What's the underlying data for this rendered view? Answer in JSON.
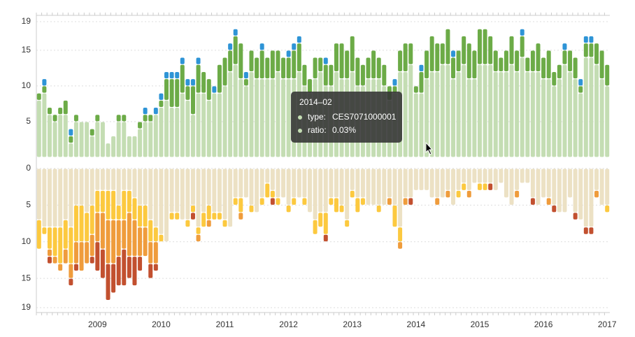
{
  "chart_data": {
    "type": "unit-stack",
    "grid": true,
    "categories": [
      null,
      null,
      null,
      null,
      null,
      null,
      null,
      null,
      null,
      null,
      null,
      "2009",
      null,
      null,
      null,
      null,
      null,
      null,
      null,
      null,
      null,
      null,
      null,
      "2010",
      null,
      null,
      null,
      null,
      null,
      null,
      null,
      null,
      null,
      null,
      null,
      "2011",
      null,
      null,
      null,
      null,
      null,
      null,
      null,
      null,
      null,
      null,
      null,
      "2012",
      null,
      null,
      null,
      null,
      null,
      null,
      null,
      null,
      null,
      null,
      null,
      "2013",
      null,
      null,
      null,
      null,
      null,
      null,
      null,
      null,
      null,
      null,
      null,
      "2014",
      null,
      null,
      null,
      null,
      null,
      null,
      null,
      null,
      null,
      null,
      null,
      "2015",
      null,
      null,
      null,
      null,
      null,
      null,
      null,
      null,
      null,
      null,
      null,
      "2016",
      null,
      null,
      null,
      null,
      null,
      null,
      null,
      null,
      null,
      null,
      null,
      "2017"
    ],
    "panels": [
      {
        "direction": "up",
        "ylim": [
          0,
          19
        ],
        "yticks": [
          5,
          10,
          15,
          19
        ],
        "series": [
          {
            "color": "#c4ddb3",
            "values": [
              8,
              9,
              6,
              5,
              6,
              6,
              2,
              5,
              5,
              5,
              3,
              5,
              5,
              2,
              3,
              5,
              5,
              3,
              3,
              4,
              5,
              5,
              6,
              7,
              8,
              7,
              7,
              9,
              8,
              6,
              9,
              9,
              8,
              9,
              9,
              10,
              12,
              13,
              11,
              10,
              12,
              11,
              11,
              11,
              11,
              12,
              11,
              11,
              11,
              12,
              10,
              9,
              11,
              12,
              10,
              10,
              12,
              11,
              11,
              12,
              10,
              10,
              11,
              11,
              11,
              10,
              8,
              9,
              12,
              12,
              13,
              9,
              9,
              11,
              12,
              12,
              13,
              13,
              11,
              12,
              13,
              11,
              11,
              13,
              13,
              13,
              12,
              12,
              12,
              13,
              12,
              14,
              12,
              12,
              12,
              11,
              11,
              10,
              11,
              13,
              12,
              11,
              9,
              14,
              14,
              13,
              11,
              10
            ]
          },
          {
            "color": "#6cab47",
            "values": [
              1,
              1,
              1,
              1,
              1,
              2,
              1,
              1,
              0,
              0,
              1,
              1,
              0,
              0,
              0,
              1,
              1,
              0,
              0,
              1,
              1,
              1,
              0,
              1,
              3,
              4,
              4,
              4,
              2,
              4,
              4,
              3,
              3,
              0,
              4,
              4,
              3,
              4,
              5,
              1,
              3,
              3,
              4,
              3,
              4,
              3,
              3,
              3,
              4,
              4,
              3,
              2,
              3,
              2,
              3,
              3,
              4,
              5,
              4,
              5,
              4,
              3,
              3,
              4,
              3,
              3,
              2,
              1,
              3,
              4,
              3,
              1,
              3,
              4,
              5,
              4,
              3,
              5,
              3,
              3,
              4,
              5,
              4,
              5,
              5,
              4,
              3,
              2,
              3,
              4,
              3,
              3,
              2,
              3,
              4,
              3,
              4,
              2,
              2,
              2,
              3,
              3,
              1,
              2,
              2,
              3,
              4,
              3
            ]
          },
          {
            "color": "#2e94d6",
            "values": [
              0,
              1,
              0,
              0,
              0,
              0,
              1,
              0,
              0,
              0,
              0,
              0,
              0,
              0,
              0,
              0,
              0,
              0,
              0,
              0,
              1,
              0,
              1,
              1,
              1,
              1,
              1,
              1,
              1,
              1,
              1,
              0,
              0,
              1,
              0,
              0,
              1,
              1,
              0,
              1,
              0,
              0,
              1,
              0,
              0,
              0,
              0,
              1,
              1,
              1,
              0,
              0,
              0,
              0,
              1,
              0,
              0,
              0,
              0,
              0,
              0,
              0,
              0,
              0,
              0,
              0,
              0,
              1,
              0,
              0,
              0,
              0,
              1,
              0,
              0,
              0,
              0,
              0,
              1,
              0,
              0,
              0,
              0,
              0,
              0,
              0,
              0,
              0,
              0,
              0,
              0,
              1,
              0,
              0,
              0,
              0,
              0,
              0,
              0,
              1,
              0,
              0,
              1,
              1,
              1,
              0,
              0,
              0
            ]
          }
        ]
      },
      {
        "direction": "down",
        "ylim": [
          0,
          19
        ],
        "yticks": [
          0,
          5,
          10,
          15,
          19
        ],
        "series": [
          {
            "color": "#ece1c4",
            "values": [
              7,
              8,
              8,
              8,
              8,
              7,
              8,
              5,
              5,
              6,
              5,
              3,
              3,
              3,
              3,
              5,
              3,
              3,
              4,
              5,
              5,
              7,
              8,
              9,
              10,
              6,
              6,
              7,
              7,
              5,
              8,
              6,
              5,
              6,
              6,
              7,
              8,
              4,
              4,
              4,
              5,
              6,
              4,
              2,
              3,
              4,
              4,
              5,
              4,
              4,
              4,
              6,
              7,
              6,
              6,
              4,
              4,
              5,
              7,
              3,
              4,
              4,
              5,
              5,
              5,
              5,
              4,
              5,
              8,
              4,
              4,
              3,
              3,
              3,
              4,
              4,
              4,
              3,
              5,
              3,
              2,
              3,
              2,
              2,
              2,
              2,
              3,
              2,
              4,
              5,
              3,
              2,
              2,
              4,
              5,
              4,
              4,
              5,
              6,
              6,
              4,
              6,
              7,
              8,
              8,
              3,
              5,
              5
            ]
          },
          {
            "color": "#fcc93f",
            "values": [
              4,
              1,
              3,
              4,
              5,
              4,
              5,
              5,
              5,
              4,
              4,
              3,
              3,
              4,
              4,
              2,
              4,
              3,
              3,
              3,
              3,
              3,
              2,
              1,
              0,
              1,
              1,
              0,
              1,
              1,
              1,
              2,
              2,
              1,
              1,
              1,
              0,
              1,
              2,
              0,
              1,
              0,
              1,
              2,
              1,
              1,
              0,
              1,
              1,
              0,
              1,
              0,
              2,
              2,
              3,
              1,
              2,
              1,
              1,
              1,
              2,
              1,
              0,
              0,
              1,
              0,
              0,
              3,
              2,
              0,
              0,
              0,
              0,
              0,
              0,
              0,
              0,
              0,
              0,
              1,
              1,
              0,
              0,
              1,
              1,
              0,
              0,
              0,
              0,
              0,
              0,
              0,
              0,
              0,
              0,
              0,
              0,
              0,
              0,
              0,
              0,
              0,
              0,
              0,
              0,
              0,
              0,
              1
            ]
          },
          {
            "color": "#ef9c3c",
            "values": [
              0,
              0,
              1,
              1,
              1,
              2,
              2,
              3,
              4,
              3,
              3,
              4,
              5,
              6,
              6,
              5,
              4,
              6,
              5,
              4,
              4,
              3,
              3,
              0,
              0,
              0,
              0,
              0,
              0,
              0,
              1,
              0,
              1,
              0,
              0,
              0,
              0,
              0,
              1,
              0,
              0,
              0,
              0,
              0,
              0,
              0,
              0,
              0,
              0,
              0,
              0,
              0,
              0,
              0,
              0,
              0,
              0,
              0,
              0,
              0,
              0,
              0,
              0,
              0,
              0,
              0,
              1,
              0,
              1,
              1,
              0,
              0,
              0,
              0,
              0,
              1,
              0,
              1,
              0,
              0,
              0,
              1,
              0,
              0,
              0,
              0,
              0,
              0,
              0,
              0,
              1,
              0,
              0,
              0,
              0,
              0,
              1,
              0,
              0,
              0,
              0,
              0,
              0,
              0,
              0,
              1,
              0,
              0
            ]
          },
          {
            "color": "#c2502f",
            "values": [
              0,
              0,
              1,
              0,
              0,
              0,
              1,
              1,
              0,
              0,
              1,
              4,
              4,
              5,
              4,
              4,
              5,
              3,
              4,
              2,
              0,
              2,
              1,
              0,
              0,
              0,
              0,
              0,
              0,
              1,
              0,
              0,
              0,
              0,
              0,
              0,
              0,
              0,
              0,
              0,
              0,
              0,
              0,
              0,
              1,
              0,
              0,
              0,
              0,
              0,
              0,
              0,
              0,
              0,
              1,
              0,
              0,
              0,
              0,
              0,
              0,
              0,
              0,
              0,
              0,
              0,
              0,
              0,
              0,
              0,
              1,
              0,
              0,
              0,
              0,
              0,
              0,
              0,
              0,
              0,
              0,
              0,
              0,
              0,
              0,
              1,
              0,
              0,
              0,
              0,
              0,
              0,
              0,
              1,
              0,
              0,
              0,
              1,
              0,
              0,
              0,
              1,
              0,
              1,
              1,
              0,
              0,
              0
            ]
          }
        ]
      }
    ],
    "tooltip": {
      "title": "2014–02",
      "items": [
        {
          "label": "type:",
          "value": "CES7071000001"
        },
        {
          "label": "ratio:",
          "value": "0.03%"
        }
      ]
    }
  }
}
